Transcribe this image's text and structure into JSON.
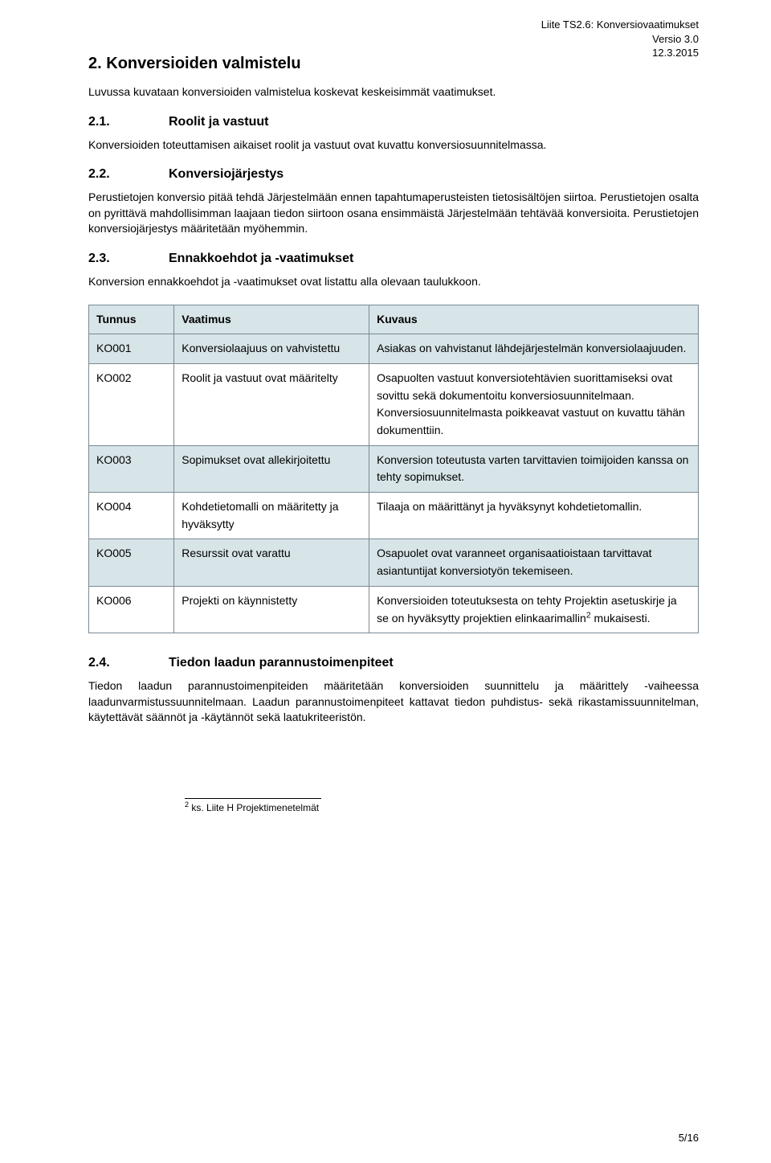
{
  "header": {
    "line1": "Liite TS2.6: Konversiovaatimukset",
    "line2": "Versio 3.0",
    "line3": "12.3.2015"
  },
  "section2": {
    "num": "2.",
    "title": "Konversioiden valmistelu",
    "intro": "Luvussa kuvataan konversioiden valmistelua koskevat keskeisimmät vaatimukset."
  },
  "s21": {
    "num": "2.1.",
    "title": "Roolit ja vastuut",
    "body": "Konversioiden toteuttamisen aikaiset roolit ja vastuut ovat kuvattu konversiosuunnitelmassa."
  },
  "s22": {
    "num": "2.2.",
    "title": "Konversiojärjestys",
    "body": "Perustietojen konversio pitää tehdä Järjestelmään ennen tapahtumaperusteisten tietosisältöjen siirtoa. Perustietojen osalta on pyrittävä mahdollisimman laajaan tiedon siirtoon osana ensimmäistä Järjestelmään tehtävää konversioita. Perustietojen konversiojärjestys määritetään myöhemmin."
  },
  "s23": {
    "num": "2.3.",
    "title": "Ennakkoehdot ja -vaatimukset",
    "body": "Konversion ennakkoehdot ja -vaatimukset ovat listattu alla olevaan taulukkoon."
  },
  "table": {
    "headers": [
      "Tunnus",
      "Vaatimus",
      "Kuvaus"
    ],
    "rows": [
      {
        "id": "KO001",
        "req": "Konversiolaajuus on vahvistettu",
        "desc": "Asiakas on vahvistanut lähdejärjestelmän konversiolaajuuden.",
        "shaded": true
      },
      {
        "id": "KO002",
        "req": "Roolit ja vastuut ovat määritelty",
        "desc": "Osapuolten vastuut konversiotehtävien suorittamiseksi ovat sovittu sekä dokumentoitu konversiosuunnitelmaan. Konversiosuunnitelmasta poikkeavat vastuut on kuvattu tähän dokumenttiin.",
        "shaded": false
      },
      {
        "id": "KO003",
        "req": "Sopimukset ovat allekirjoitettu",
        "desc": "Konversion toteutusta varten tarvittavien toimijoiden kanssa on tehty sopimukset.",
        "shaded": true
      },
      {
        "id": "KO004",
        "req": "Kohdetietomalli on määritetty ja hyväksytty",
        "desc": "Tilaaja on määrittänyt ja hyväksynyt kohdetietomallin.",
        "shaded": false
      },
      {
        "id": "KO005",
        "req": "Resurssit ovat varattu",
        "desc": "Osapuolet ovat varanneet organisaatioistaan tarvittavat asiantuntijat konversiotyön tekemiseen.",
        "shaded": true
      },
      {
        "id": "KO006",
        "req": "Projekti on käynnistetty",
        "desc_pre": "Konversioiden toteutuksesta on tehty Projektin asetuskirje ja se on hyväksytty projektien elinkaarimallin",
        "desc_sup": "2",
        "desc_post": " mukaisesti.",
        "shaded": false
      }
    ]
  },
  "s24": {
    "num": "2.4.",
    "title": "Tiedon laadun parannustoimenpiteet",
    "body": "Tiedon laadun parannustoimenpiteiden määritetään konversioiden suunnittelu ja määrittely -vaiheessa laadunvarmistussuunnitelmaan. Laadun parannustoimenpiteet kattavat tiedon puhdistus- sekä rikastamissuunnitelman, käytettävät säännöt ja -käytännöt sekä laatukriteeristön."
  },
  "footnote": {
    "marker": "2",
    "text": " ks. Liite H Projektimenetelmät"
  },
  "pagenum": "5/16"
}
